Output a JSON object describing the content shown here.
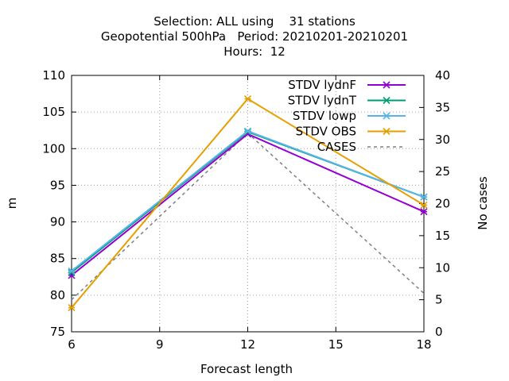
{
  "chart_data": {
    "type": "line",
    "title": [
      "Selection: ALL using    31 stations",
      "Geopotential 500hPa   Period: 20210201-20210201",
      "Hours:  12"
    ],
    "xlabel": "Forecast length",
    "ylabel": "m",
    "y2label": "No cases",
    "x": [
      6,
      12,
      18
    ],
    "xticks": [
      "6",
      "9",
      "12",
      "15",
      "18"
    ],
    "xlim": [
      6,
      18
    ],
    "ylim": [
      75,
      110
    ],
    "yticks": [
      "75",
      "80",
      "85",
      "90",
      "95",
      "100",
      "105",
      "110"
    ],
    "y2lim": [
      0,
      40
    ],
    "y2ticks": [
      "0",
      "5",
      "10",
      "15",
      "20",
      "25",
      "30",
      "35",
      "40"
    ],
    "grid": true,
    "legend_position": "top-right",
    "series": [
      {
        "name": "STDV lydnF",
        "color": "#9400d3",
        "marker": "x",
        "axis": "y",
        "values": [
          82.7,
          102.0,
          91.4
        ]
      },
      {
        "name": "STDV lydnT",
        "color": "#009e73",
        "marker": "x",
        "axis": "y",
        "values": [
          83.1,
          102.3,
          93.4
        ]
      },
      {
        "name": "STDV lowp",
        "color": "#56b4e9",
        "marker": "x",
        "axis": "y",
        "values": [
          83.3,
          102.4,
          93.4
        ]
      },
      {
        "name": "STDV OBS",
        "color": "#e69f00",
        "marker": "x",
        "axis": "y",
        "values": [
          78.3,
          106.8,
          92.3
        ]
      },
      {
        "name": "CASES",
        "color": "#808080",
        "marker": "none",
        "dash": true,
        "axis": "y2",
        "values": [
          5,
          31,
          6
        ]
      }
    ]
  }
}
